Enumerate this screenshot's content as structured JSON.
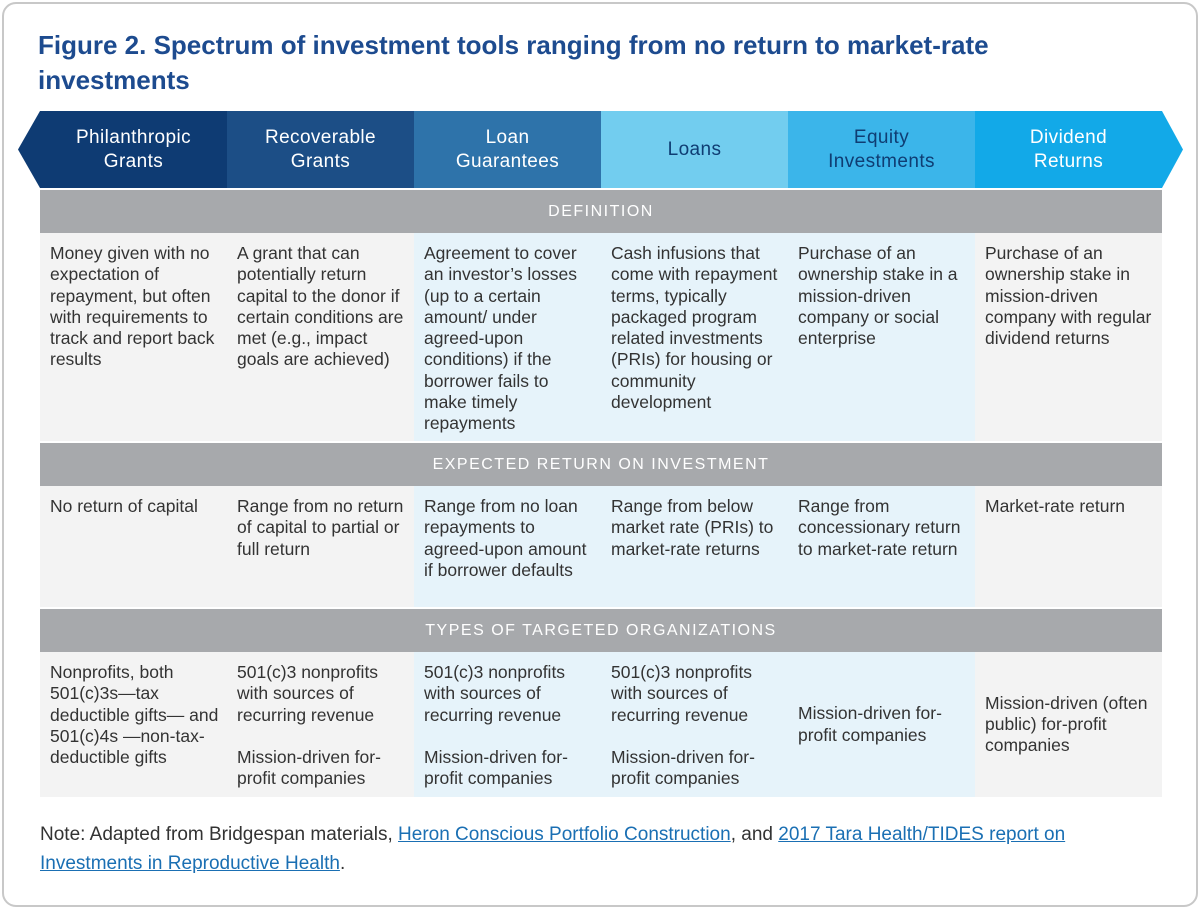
{
  "title": "Figure 2. Spectrum of investment tools ranging from no return to market-rate investments",
  "columns": [
    "Philanthropic Grants",
    "Recoverable Grants",
    "Loan Guarantees",
    "Loans",
    "Equity Investments",
    "Dividend Returns"
  ],
  "sections": [
    {
      "heading": "DEFINITION",
      "cells": [
        [
          "Money given with no expectation of repayment, but often with requirements to track and report back results"
        ],
        [
          "A grant that can potentially return capital to the donor if certain conditions are met (e.g., impact goals are achieved)"
        ],
        [
          "Agreement to cover an investor’s losses (up to a certain amount/ under agreed-upon conditions) if the borrower fails to make timely repayments"
        ],
        [
          "Cash infusions that come with repayment terms, typically packaged program related investments (PRIs) for housing or community development"
        ],
        [
          "Purchase of an ownership stake in a mission-driven company or social enterprise"
        ],
        [
          "Purchase of an ownership stake in mission-driven company with regular dividend returns"
        ]
      ]
    },
    {
      "heading": "EXPECTED RETURN ON INVESTMENT",
      "cells": [
        [
          "No return of capital"
        ],
        [
          "Range from no return of capital to partial or full return"
        ],
        [
          "Range from no loan repayments to agreed-upon amount if borrower defaults"
        ],
        [
          "Range from below market rate (PRIs) to market-rate returns"
        ],
        [
          "Range from concessionary return to market-rate return"
        ],
        [
          "Market-rate return"
        ]
      ]
    },
    {
      "heading": "TYPES OF TARGETED ORGANIZATIONS",
      "cells": [
        [
          "Nonprofits, both 501(c)3s—tax deductible gifts— and 501(c)4s —non-tax-deductible gifts"
        ],
        [
          "501(c)3 nonprofits with sources of recurring revenue",
          "Mission-driven for-profit companies"
        ],
        [
          "501(c)3 nonprofits with sources of recurring revenue",
          "Mission-driven for-profit companies"
        ],
        [
          "501(c)3 nonprofits with sources of recurring revenue",
          "Mission-driven for-profit companies"
        ],
        [
          "Mission-driven for-profit companies"
        ],
        [
          "Mission-driven (often public) for-profit companies"
        ]
      ]
    }
  ],
  "note": {
    "prefix": "Note: Adapted from Bridgespan materials,",
    "link1": "Heron Conscious Portfolio Construction",
    "middle": ", and",
    "link2": "2017 Tara Health/TIDES report on Investments in Reproductive Health",
    "suffix": "."
  }
}
